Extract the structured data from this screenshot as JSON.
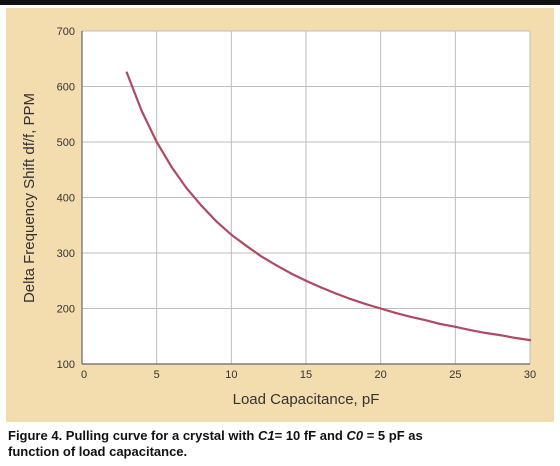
{
  "chart_data": {
    "type": "line",
    "title": "",
    "xlabel": "Load Capacitance, pF",
    "ylabel": "Delta Frequency Shift df/f, PPM",
    "xlim": [
      0,
      30
    ],
    "ylim": [
      100,
      700
    ],
    "x_ticks": [
      "0",
      "5",
      "10",
      "15",
      "20",
      "25",
      "30"
    ],
    "y_ticks": [
      "100",
      "200",
      "300",
      "400",
      "500",
      "600",
      "700"
    ],
    "grid": true,
    "series": [
      {
        "x": [
          3,
          4,
          5,
          6,
          7,
          8,
          9,
          10,
          11,
          12,
          13,
          14,
          15,
          16,
          17,
          18,
          19,
          20,
          21,
          22,
          23,
          24,
          25,
          26,
          27,
          28,
          29,
          30
        ],
        "values": [
          625,
          556,
          500,
          455,
          417,
          385,
          357,
          333,
          313,
          294,
          278,
          263,
          250,
          238,
          227,
          217,
          208,
          200,
          192,
          185,
          179,
          172,
          167,
          161,
          156,
          152,
          147,
          143
        ]
      }
    ]
  },
  "colors": {
    "panel": "#f3ddaf",
    "plot_area": "#ffffff",
    "grid": "#bdbdbd",
    "curve": "#b04a63",
    "text": "#333333"
  },
  "caption": {
    "prefix": "Figure 4. Pulling curve for a crystal with ",
    "c1_label": "C1",
    "c1_value": "= 10 fF and ",
    "c0_label": "C0",
    "c0_value": " = 5 pF as",
    "line2": "function of load capacitance."
  }
}
